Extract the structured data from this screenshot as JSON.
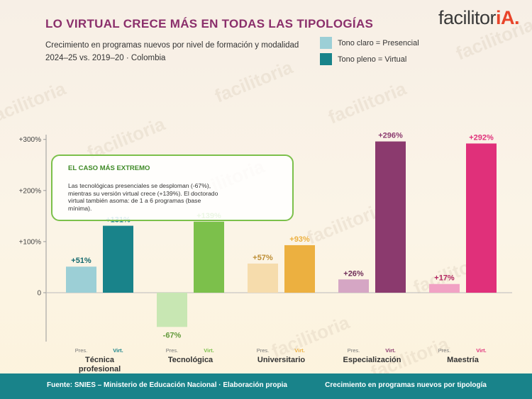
{
  "header": {
    "title": "LO VIRTUAL CRECE MÁS EN TODAS LAS TIPOLOGÍAS",
    "subtitle_line1": "Crecimiento en programas nuevos por nivel de formación y modalidad",
    "subtitle_line2": "2024–25 vs. 2019–20 · Colombia",
    "brand_main": "facilitor",
    "brand_accent": "iA."
  },
  "legend": {
    "light": "Tono claro = Presencial",
    "full": "Tono pleno = Virtual",
    "light_color": "#9ccfd6",
    "full_color": "#19838a"
  },
  "callout": {
    "title": "EL CASO MÁS EXTREMO",
    "text": "Las tecnológicas presenciales se desploman (-67%), mientras su versión virtual crece (+139%). El doctorado virtual también asoma: de 1 a 6 programas (base mínima)."
  },
  "footer": {
    "source": "Fuente: SNIES – Ministerio de Educación Nacional · Elaboración propia",
    "caption": "Crecimiento en programas nuevos por tipología"
  },
  "watermark_text": "facilitoria",
  "chart_data": {
    "type": "bar",
    "title": "LO VIRTUAL CRECE MÁS EN TODAS LAS TIPOLOGÍAS",
    "xlabel": "",
    "ylabel": "",
    "ylim": [
      -100,
      320
    ],
    "yticks": [
      0,
      100,
      200,
      300
    ],
    "ytick_labels": [
      "0",
      "+100%",
      "+200%",
      "+300%"
    ],
    "grid": false,
    "legend_position": "top-right",
    "series_short_labels": [
      "Pres.",
      "Virt."
    ],
    "categories": [
      {
        "label_lines": [
          "Técnica",
          "profesional"
        ],
        "pres": 51,
        "virt": 131,
        "pres_label": "+51%",
        "virt_label": "+131%",
        "pres_color": "#9ccfd6",
        "virt_color": "#19838a"
      },
      {
        "label_lines": [
          "Tecnológica"
        ],
        "pres": -67,
        "virt": 139,
        "pres_label": "-67%",
        "virt_label": "+139%",
        "pres_color": "#c8e7b3",
        "virt_color": "#7cc04b"
      },
      {
        "label_lines": [
          "Universitario"
        ],
        "pres": 57,
        "virt": 93,
        "pres_label": "+57%",
        "virt_label": "+93%",
        "pres_color": "#f6dcac",
        "virt_color": "#ecb040"
      },
      {
        "label_lines": [
          "Especialización"
        ],
        "pres": 26,
        "virt": 296,
        "pres_label": "+26%",
        "virt_label": "+296%",
        "pres_color": "#d5a6c4",
        "virt_color": "#8b3a6e"
      },
      {
        "label_lines": [
          "Maestría"
        ],
        "pres": 17,
        "virt": 292,
        "pres_label": "+17%",
        "virt_label": "+292%",
        "pres_color": "#f1a2c4",
        "virt_color": "#e0307a"
      }
    ]
  }
}
